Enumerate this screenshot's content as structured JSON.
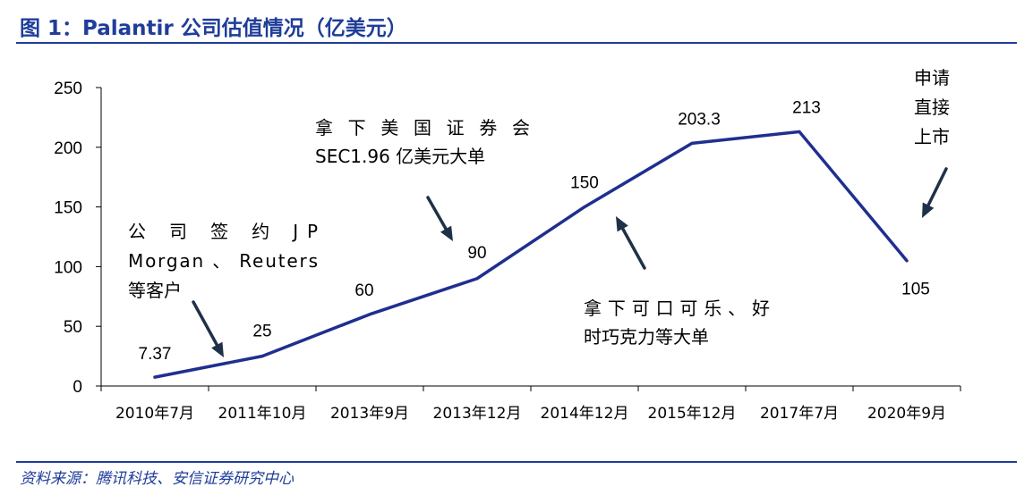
{
  "figure": {
    "title": "图 1：Palantir 公司估值情况（亿美元）",
    "source": "资料来源：腾讯科技、安信证券研究中心"
  },
  "chart_data": {
    "type": "line",
    "categories": [
      "2010年7月",
      "2011年10月",
      "2013年9月",
      "2013年12月",
      "2014年12月",
      "2015年12月",
      "2017年7月",
      "2020年9月"
    ],
    "series": [
      {
        "values": [
          7.37,
          25,
          60,
          90,
          150,
          203.3,
          213,
          105
        ],
        "labels": [
          "7.37",
          "25",
          "60",
          "90",
          "150",
          "203.3",
          "213",
          "105"
        ]
      }
    ],
    "ylim": [
      0,
      250
    ],
    "yticks": [
      "0",
      "50",
      "100",
      "150",
      "200",
      "250"
    ],
    "xlabel": "",
    "ylabel": "",
    "grid": false,
    "line_color": "#1f2f8f",
    "annotations": [
      {
        "lines": [
          "公 司 签 约 JP",
          "Morgan 、 Reuters",
          "等客户"
        ]
      },
      {
        "lines": [
          "拿 下 美 国 证 券 会",
          "SEC1.96 亿美元大单"
        ]
      },
      {
        "lines": [
          "拿下可口可乐、好",
          "时巧克力等大单"
        ]
      },
      {
        "lines": [
          "申请",
          "直接",
          "上市"
        ]
      }
    ]
  }
}
